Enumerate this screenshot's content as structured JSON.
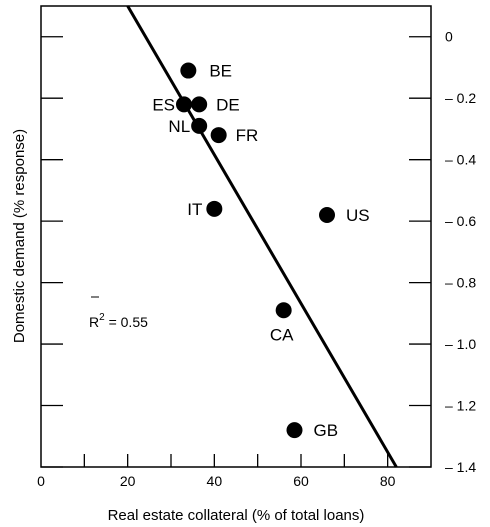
{
  "chart_data": {
    "type": "scatter",
    "xlabel": "Real estate collateral (% of total loans)",
    "ylabel": "Domestic demand (% response)",
    "xlim": [
      0,
      90
    ],
    "ylim": [
      -1.4,
      0.1
    ],
    "x_ticks": [
      0,
      20,
      40,
      60,
      80
    ],
    "x_tick_labels": [
      "0",
      "20",
      "40",
      "60",
      "80"
    ],
    "y_ticks": [
      0,
      -0.2,
      -0.4,
      -0.6,
      -0.8,
      -1.0,
      -1.2,
      -1.4
    ],
    "y_tick_labels": [
      "0",
      "– 0.2",
      "– 0.4",
      "– 0.6",
      "– 0.8",
      "– 1.0",
      "– 1.2",
      "– 1.4"
    ],
    "y_axis_side": "right",
    "grid": false,
    "points": [
      {
        "label": "BE",
        "x": 34,
        "y": -0.11
      },
      {
        "label": "ES",
        "x": 33,
        "y": -0.22
      },
      {
        "label": "DE",
        "x": 36.5,
        "y": -0.22
      },
      {
        "label": "NL",
        "x": 36.5,
        "y": -0.29
      },
      {
        "label": "FR",
        "x": 41,
        "y": -0.32
      },
      {
        "label": "IT",
        "x": 40,
        "y": -0.56
      },
      {
        "label": "US",
        "x": 66,
        "y": -0.58
      },
      {
        "label": "CA",
        "x": 56,
        "y": -0.89
      },
      {
        "label": "GB",
        "x": 58.5,
        "y": -1.28
      }
    ],
    "fit_line": {
      "x1": 20,
      "y1": 0.1,
      "x2": 82,
      "y2": -1.4
    },
    "annotation": "R² = 0.55",
    "annotation_parts": {
      "base": "R",
      "sup": "2",
      "rest": " = 0.55"
    }
  }
}
